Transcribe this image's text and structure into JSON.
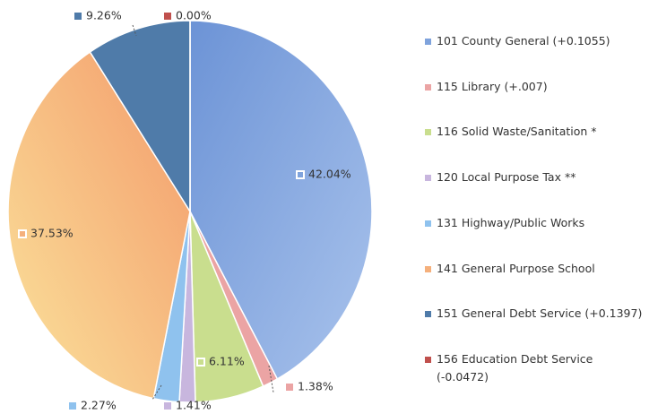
{
  "chart_data": {
    "type": "pie",
    "categories": [
      "101 County General (+0.1055)",
      "115 Library (+.007)",
      "116 Solid Waste/Sanitation  *",
      "120 Local Purpose Tax  **",
      "131 Highway/Public Works",
      "141 General Purpose School",
      "151 General Debt Service (+0.1397)",
      "156 Education Debt Service (-0.0472)"
    ],
    "values": [
      42.04,
      1.38,
      6.11,
      1.41,
      2.27,
      37.53,
      9.26,
      0
    ],
    "value_labels": [
      "42.04%",
      "1.38%",
      "6.11%",
      "1.41%",
      "2.27%",
      "37.53%",
      "9.26%",
      "0.00%"
    ],
    "colors": [
      "#7fa3dc",
      "#eba4a4",
      "#c9de8e",
      "#c8b6de",
      "#8fc2ee",
      "#f5b07c",
      "#4f7ba9",
      "#c0504d"
    ],
    "legend": "right"
  }
}
